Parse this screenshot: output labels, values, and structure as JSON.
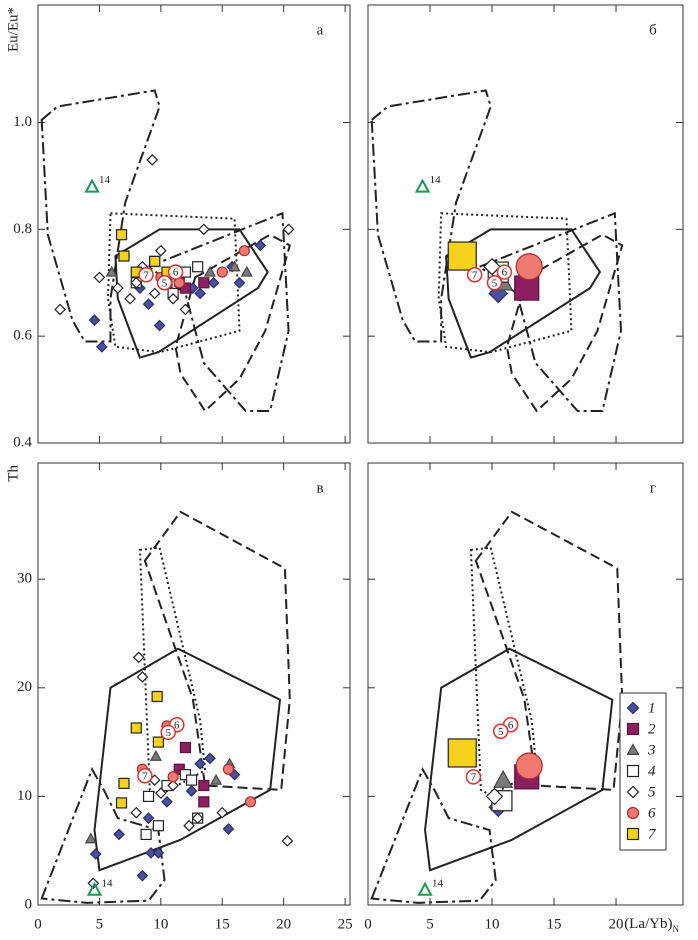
{
  "chart_data": [
    {
      "type": "scatter",
      "label": "а",
      "ylabel": "Eu/Eu*",
      "xlim": [
        0,
        25.4
      ],
      "ylim": [
        0.4,
        1.22
      ],
      "xticks": [
        0,
        5,
        10,
        15,
        20,
        25
      ],
      "yticks": [
        0.4,
        0.6,
        0.8,
        {
          "value": 1,
          "label": "1.0"
        }
      ],
      "xtick_labels": false,
      "ytick_labels": true,
      "markers": "small",
      "fields": [
        {
          "style": "dash-dot",
          "x": [
            0.3,
            1.6,
            9.5,
            9.9,
            7.1,
            5.9,
            5.9,
            3.8,
            2.8,
            0.8
          ],
          "y": [
            1.005,
            1.03,
            1.06,
            1.03,
            0.85,
            0.67,
            0.59,
            0.59,
            0.63,
            0.79
          ]
        },
        {
          "style": "dash-dot",
          "x": [
            9.0,
            19.9,
            20.4,
            18.9,
            16.9,
            13.5,
            12.0
          ],
          "y": [
            0.73,
            0.83,
            0.61,
            0.46,
            0.46,
            0.55,
            0.68
          ]
        },
        {
          "style": "dotted",
          "x": [
            5.9,
            16.0,
            16.3,
            16.4,
            9.9,
            6.3,
            5.7
          ],
          "y": [
            0.83,
            0.82,
            0.67,
            0.61,
            0.57,
            0.58,
            0.67
          ]
        },
        {
          "style": "solid",
          "x": [
            6.3,
            9.9,
            16.4,
            18.7,
            17.9,
            9.8,
            8.3,
            6.5
          ],
          "y": [
            0.75,
            0.8,
            0.8,
            0.72,
            0.69,
            0.57,
            0.56,
            0.67
          ]
        },
        {
          "style": "dashed",
          "x": [
            12.8,
            18.9,
            20.5,
            18.5,
            16.4,
            13.6,
            11.6,
            11.2
          ],
          "y": [
            0.71,
            0.79,
            0.77,
            0.61,
            0.52,
            0.46,
            0.53,
            0.58
          ]
        }
      ],
      "series": [
        {
          "marker": "diamond",
          "color": "#4b4f9e",
          "edge": "#2a2d66",
          "x": [
            4.6,
            5.2,
            9.9,
            8.3,
            12.6,
            13.2,
            14.3,
            15.8,
            18.1,
            16.4,
            9.0
          ],
          "y": [
            0.63,
            0.58,
            0.62,
            0.69,
            0.69,
            0.68,
            0.7,
            0.73,
            0.77,
            0.7,
            0.66
          ]
        },
        {
          "marker": "square",
          "color": "#8b1f5f",
          "edge": "#5a1040",
          "x": [
            12.0,
            13.5,
            11.5
          ],
          "y": [
            0.69,
            0.7,
            0.71
          ]
        },
        {
          "marker": "triangle",
          "color": "#7a7a7a",
          "edge": "#444444",
          "x": [
            6.0,
            17.0,
            16.0,
            14.0
          ],
          "y": [
            0.72,
            0.72,
            0.73,
            0.72
          ]
        },
        {
          "marker": "square",
          "color": "#ffffff",
          "edge": "#222222",
          "x": [
            9.5,
            10.5,
            12.0,
            13.0,
            8.0,
            11.0
          ],
          "y": [
            0.74,
            0.7,
            0.72,
            0.73,
            0.7,
            0.68
          ]
        },
        {
          "marker": "diamond",
          "color": "#ffffff",
          "edge": "#222222",
          "x": [
            1.8,
            9.3,
            5.0,
            6.5,
            7.5,
            8.0,
            9.5,
            10.0,
            10.5,
            12.0,
            13.5,
            15.0,
            20.4,
            8.5,
            11.0
          ],
          "y": [
            0.65,
            0.93,
            0.71,
            0.69,
            0.67,
            0.7,
            0.68,
            0.76,
            0.72,
            0.65,
            0.8,
            0.72,
            0.8,
            0.73,
            0.67
          ]
        },
        {
          "marker": "circle",
          "color": "#f07a72",
          "edge": "#b02a2a",
          "x": [
            16.8,
            15.0,
            10.0,
            11.5
          ],
          "y": [
            0.76,
            0.72,
            0.71,
            0.7
          ]
        },
        {
          "marker": "square",
          "color": "#f7d21a",
          "edge": "#222222",
          "x": [
            6.8,
            7.0,
            8.0,
            9.5,
            10.5
          ],
          "y": [
            0.79,
            0.75,
            0.72,
            0.74,
            0.72
          ]
        }
      ],
      "annotations": [
        {
          "text": "14",
          "x": 4.4,
          "y": 0.88,
          "color": "#1a9a50"
        }
      ],
      "point_labels": [
        {
          "text": "7",
          "x": 8.8,
          "y": 0.715
        },
        {
          "text": "6",
          "x": 11.2,
          "y": 0.72
        },
        {
          "text": "5",
          "x": 10.3,
          "y": 0.7
        }
      ]
    },
    {
      "type": "scatter",
      "label": "б",
      "xlim": [
        0,
        25.4
      ],
      "ylim": [
        0.4,
        1.22
      ],
      "xticks": [
        0,
        5,
        10,
        15,
        20
      ],
      "yticks": [
        0.4,
        0.6,
        0.8,
        1
      ],
      "xtick_labels": false,
      "ytick_labels": false,
      "markers": "large",
      "fields": [
        {
          "style": "dash-dot",
          "x": [
            0.3,
            1.6,
            9.5,
            9.9,
            7.1,
            5.9,
            5.9,
            3.8,
            2.8,
            0.8
          ],
          "y": [
            1.005,
            1.03,
            1.06,
            1.03,
            0.85,
            0.67,
            0.59,
            0.59,
            0.63,
            0.79
          ]
        },
        {
          "style": "dash-dot",
          "x": [
            9.0,
            19.9,
            20.4,
            18.9,
            16.9,
            13.5,
            12.0
          ],
          "y": [
            0.73,
            0.83,
            0.61,
            0.46,
            0.46,
            0.55,
            0.68
          ]
        },
        {
          "style": "dotted",
          "x": [
            5.9,
            16.0,
            16.3,
            16.4,
            9.9,
            6.3,
            5.7
          ],
          "y": [
            0.83,
            0.82,
            0.67,
            0.61,
            0.57,
            0.58,
            0.67
          ]
        },
        {
          "style": "solid",
          "x": [
            6.3,
            9.9,
            16.4,
            18.7,
            17.9,
            9.8,
            8.3,
            6.5
          ],
          "y": [
            0.75,
            0.8,
            0.8,
            0.72,
            0.69,
            0.57,
            0.56,
            0.67
          ]
        },
        {
          "style": "dashed",
          "x": [
            12.8,
            18.9,
            20.5,
            18.5,
            16.4,
            13.6,
            11.6,
            11.2
          ],
          "y": [
            0.71,
            0.79,
            0.77,
            0.61,
            0.52,
            0.46,
            0.53,
            0.58
          ]
        }
      ],
      "series": [
        {
          "marker": "diamond",
          "color": "#4b4f9e",
          "edge": "#2a2d66",
          "x": [
            10.5
          ],
          "y": [
            0.68
          ]
        },
        {
          "marker": "square",
          "color": "#8b1f5f",
          "edge": "#5a1040",
          "x": [
            12.8
          ],
          "y": [
            0.69
          ]
        },
        {
          "marker": "triangle",
          "color": "#7a7a7a",
          "edge": "#444444",
          "x": [
            10.9
          ],
          "y": [
            0.7
          ]
        },
        {
          "marker": "square",
          "color": "#ffffff",
          "edge": "#222222",
          "x": [
            10.5
          ],
          "y": [
            0.72
          ]
        },
        {
          "marker": "diamond",
          "color": "#ffffff",
          "edge": "#222222",
          "x": [
            10.0
          ],
          "y": [
            0.73
          ]
        },
        {
          "marker": "circle",
          "color": "#f07a72",
          "edge": "#b02a2a",
          "x": [
            13.0
          ],
          "y": [
            0.73
          ]
        },
        {
          "marker": "square",
          "color": "#f7d21a",
          "edge": "#222222",
          "x": [
            7.6
          ],
          "y": [
            0.75
          ]
        }
      ],
      "annotations": [
        {
          "text": "14",
          "x": 4.4,
          "y": 0.88,
          "color": "#1a9a50"
        }
      ],
      "point_labels": [
        {
          "text": "7",
          "x": 8.6,
          "y": 0.715
        },
        {
          "text": "6",
          "x": 11.0,
          "y": 0.72
        },
        {
          "text": "5",
          "x": 10.2,
          "y": 0.7
        }
      ]
    },
    {
      "type": "scatter",
      "label": "в",
      "ylabel": "Th",
      "xlim": [
        0,
        25.4
      ],
      "ylim": [
        0,
        40.7
      ],
      "xticks": [
        0,
        5,
        10,
        15,
        20,
        25
      ],
      "yticks": [
        0,
        10,
        20,
        30
      ],
      "xtick_labels": true,
      "ytick_labels": true,
      "markers": "small",
      "fields": [
        {
          "style": "dash-dot",
          "x": [
            0.3,
            4.4,
            5.4,
            6.5,
            9.8,
            10.3,
            9.0,
            4.0
          ],
          "y": [
            0.6,
            12.5,
            10.5,
            8.0,
            6.9,
            2.3,
            0.4,
            0.2
          ]
        },
        {
          "style": "dashed",
          "x": [
            8.7,
            11.6,
            20.1,
            20.5,
            19.8,
            13.6,
            12.6
          ],
          "y": [
            31.7,
            36.2,
            31.0,
            18.9,
            10.6,
            11.0,
            19.0
          ]
        },
        {
          "style": "dotted",
          "x": [
            8.3,
            9.9,
            13.2,
            13.6,
            9.9,
            9.1
          ],
          "y": [
            32.7,
            32.9,
            17.0,
            12.4,
            10.1,
            10.6
          ]
        },
        {
          "style": "solid",
          "x": [
            5.9,
            11.4,
            19.7,
            18.9,
            11.6,
            5.0,
            4.6
          ],
          "y": [
            20.0,
            23.6,
            18.9,
            10.6,
            6.0,
            3.2,
            6.9
          ]
        }
      ],
      "series": [
        {
          "marker": "diamond",
          "color": "#4b4f9e",
          "edge": "#2a2d66",
          "x": [
            4.7,
            6.6,
            8.5,
            9.2,
            9.8,
            10.5,
            11.5,
            12.5,
            14.0,
            15.5,
            16.0,
            13.2,
            9.0
          ],
          "y": [
            4.7,
            6.5,
            2.7,
            4.8,
            4.8,
            9.5,
            12.5,
            10.5,
            13.5,
            7.0,
            12.0,
            13.0,
            8.0
          ]
        },
        {
          "marker": "square",
          "color": "#8b1f5f",
          "edge": "#5a1040",
          "x": [
            13.5,
            12.0,
            13.5,
            11.5
          ],
          "y": [
            9.5,
            14.5,
            11.0,
            12.5
          ]
        },
        {
          "marker": "triangle",
          "color": "#7a7a7a",
          "edge": "#444444",
          "x": [
            4.3,
            9.6,
            14.5,
            15.6
          ],
          "y": [
            6.1,
            13.7,
            11.5,
            13.0
          ]
        },
        {
          "marker": "square",
          "color": "#ffffff",
          "edge": "#222222",
          "x": [
            8.8,
            9.8,
            10.5,
            12.0,
            12.5,
            9.0,
            13.0
          ],
          "y": [
            6.5,
            7.3,
            11.0,
            12.0,
            11.5,
            10.0,
            8.0
          ]
        },
        {
          "marker": "diamond",
          "color": "#ffffff",
          "edge": "#222222",
          "x": [
            4.5,
            8.2,
            8.5,
            8.0,
            11.0,
            12.3,
            13.0,
            15.0,
            20.3,
            9.5,
            10.0
          ],
          "y": [
            2.0,
            22.8,
            21.0,
            8.5,
            11.0,
            7.3,
            8.0,
            8.5,
            5.9,
            11.5,
            10.3
          ]
        },
        {
          "marker": "circle",
          "color": "#f07a72",
          "edge": "#b02a2a",
          "x": [
            10.5,
            17.3,
            15.5,
            8.5,
            11.0
          ],
          "y": [
            16.5,
            9.5,
            12.5,
            12.5,
            11.8
          ]
        },
        {
          "marker": "square",
          "color": "#f7d21a",
          "edge": "#222222",
          "x": [
            6.8,
            7.0,
            8.0,
            9.7,
            9.8
          ],
          "y": [
            9.4,
            11.2,
            16.3,
            19.2,
            15.0
          ]
        }
      ],
      "annotations": [
        {
          "text": "14",
          "x": 4.6,
          "y": 1.4,
          "color": "#1a9a50"
        }
      ],
      "point_labels": [
        {
          "text": "7",
          "x": 8.7,
          "y": 11.9
        },
        {
          "text": "6",
          "x": 11.3,
          "y": 16.6
        },
        {
          "text": "5",
          "x": 10.6,
          "y": 15.9
        }
      ]
    },
    {
      "type": "scatter",
      "label": "г",
      "xlabel": "(La/Yb)",
      "xlabel_sub": "N",
      "xlim": [
        0,
        25.4
      ],
      "ylim": [
        0,
        40.7
      ],
      "xticks": [
        0,
        5,
        10,
        15,
        20
      ],
      "yticks": [
        0,
        10,
        20,
        30
      ],
      "xtick_labels": true,
      "ytick_labels": false,
      "markers": "large",
      "legend": "right",
      "fields": [
        {
          "style": "dash-dot",
          "x": [
            0.3,
            4.4,
            5.4,
            6.5,
            9.8,
            10.3,
            9.0,
            4.0
          ],
          "y": [
            0.6,
            12.5,
            10.5,
            8.0,
            6.9,
            2.3,
            0.4,
            0.2
          ]
        },
        {
          "style": "dashed",
          "x": [
            8.7,
            11.6,
            20.1,
            20.5,
            19.8,
            13.6,
            12.6
          ],
          "y": [
            31.7,
            36.2,
            31.0,
            18.9,
            10.6,
            11.0,
            19.0
          ]
        },
        {
          "style": "dotted",
          "x": [
            8.3,
            9.9,
            13.2,
            13.6,
            9.9,
            9.1
          ],
          "y": [
            32.7,
            32.9,
            17.0,
            12.4,
            10.1,
            10.6
          ]
        },
        {
          "style": "solid",
          "x": [
            5.9,
            11.4,
            19.7,
            18.9,
            11.6,
            5.0,
            4.6
          ],
          "y": [
            20.0,
            23.6,
            18.9,
            10.6,
            6.0,
            3.2,
            6.9
          ]
        }
      ],
      "series": [
        {
          "name": "1",
          "marker": "diamond",
          "color": "#4b4f9e",
          "edge": "#2a2d66",
          "x": [
            10.5
          ],
          "y": [
            9.0
          ]
        },
        {
          "name": "2",
          "marker": "square",
          "color": "#8b1f5f",
          "edge": "#5a1040",
          "x": [
            12.8
          ],
          "y": [
            11.8
          ]
        },
        {
          "name": "3",
          "marker": "triangle",
          "color": "#7a7a7a",
          "edge": "#444444",
          "x": [
            10.9
          ],
          "y": [
            11.5
          ]
        },
        {
          "name": "4",
          "marker": "square",
          "color": "#ffffff",
          "edge": "#222222",
          "x": [
            10.8
          ],
          "y": [
            9.6
          ]
        },
        {
          "name": "5",
          "marker": "diamond",
          "color": "#ffffff",
          "edge": "#222222",
          "x": [
            10.2
          ],
          "y": [
            10.0
          ]
        },
        {
          "name": "6",
          "marker": "circle",
          "color": "#f07a72",
          "edge": "#b02a2a",
          "x": [
            13.0
          ],
          "y": [
            12.8
          ]
        },
        {
          "name": "7",
          "marker": "square",
          "color": "#f7d21a",
          "edge": "#222222",
          "x": [
            7.6
          ],
          "y": [
            14.0
          ]
        }
      ],
      "annotations": [
        {
          "text": "14",
          "x": 4.6,
          "y": 1.4,
          "color": "#1a9a50"
        }
      ],
      "point_labels": [
        {
          "text": "7",
          "x": 8.5,
          "y": 11.8
        },
        {
          "text": "6",
          "x": 11.5,
          "y": 16.6
        },
        {
          "text": "5",
          "x": 10.7,
          "y": 16.0
        }
      ]
    }
  ]
}
